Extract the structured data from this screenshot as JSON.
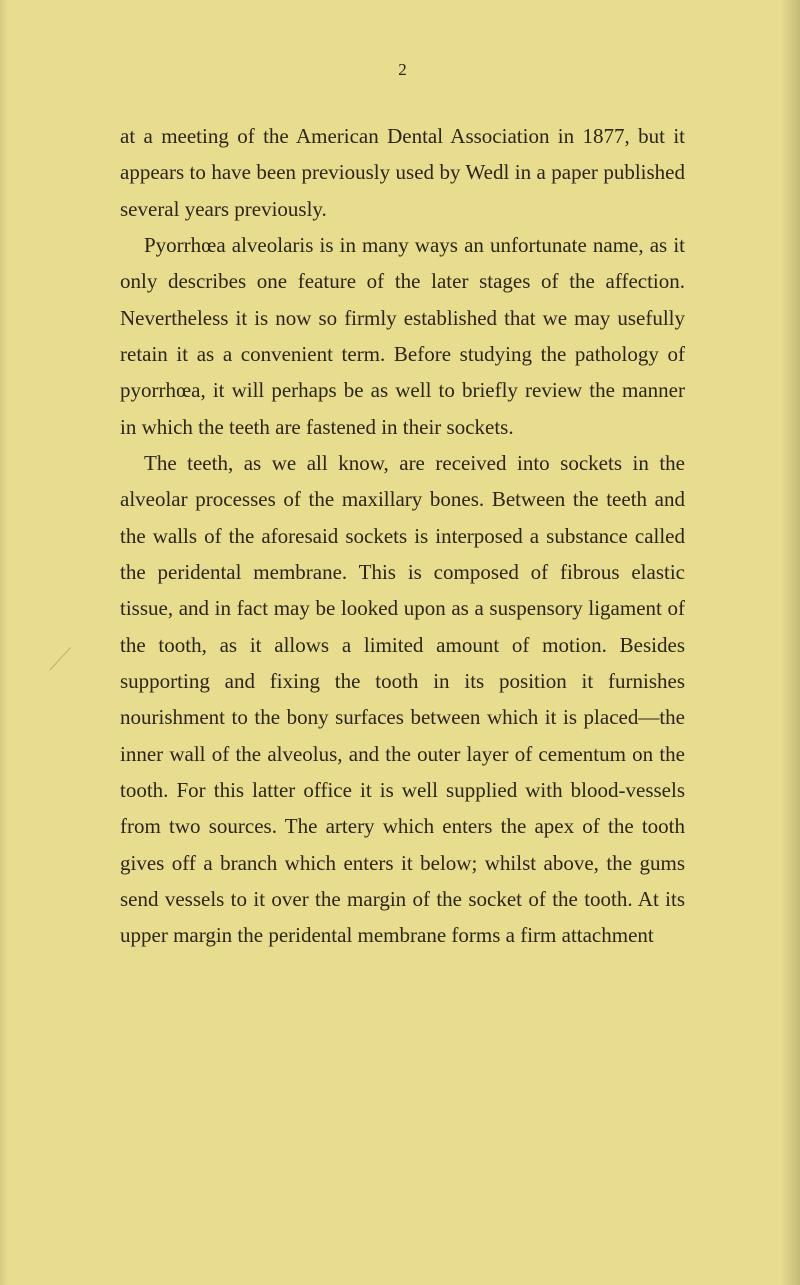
{
  "page": {
    "number": "2",
    "background_color": "#e8dc8f",
    "text_color": "#2a2618",
    "font_size": 21,
    "line_height": 1.73
  },
  "paragraphs": {
    "p1": "at a meeting of the American Dental Association in 1877, but it appears to have been previously used by Wedl in a paper published several years previously.",
    "p2": "Pyorrhœa alveolaris is in many ways an unfortunate name, as it only describes one feature of the later stages of the affection. Nevertheless it is now so firmly established that we may usefully retain it as a convenient term. Before studying the pathology of pyorrhœa, it will perhaps be as well to briefly review the manner in which the teeth are fastened in their sockets.",
    "p3": "The teeth, as we all know, are received into sockets in the alveolar processes of the maxillary bones. Between the teeth and the walls of the aforesaid sockets is interposed a substance called the peridental membrane. This is composed of fibrous elastic tissue, and in fact may be looked upon as a suspensory ligament of the tooth, as it allows a limited amount of motion. Besides supporting and fixing the tooth in its position it furnishes nourishment to the bony surfaces between which it is placed—the inner wall of the alveolus, and the outer layer of cementum on the tooth. For this latter office it is well supplied with blood-vessels from two sources. The artery which enters the apex of the tooth gives off a branch which enters it below; whilst above, the gums send vessels to it over the margin of the socket of the tooth. At its upper margin the peridental membrane forms a firm attachment"
  },
  "margin_mark": "⟋"
}
